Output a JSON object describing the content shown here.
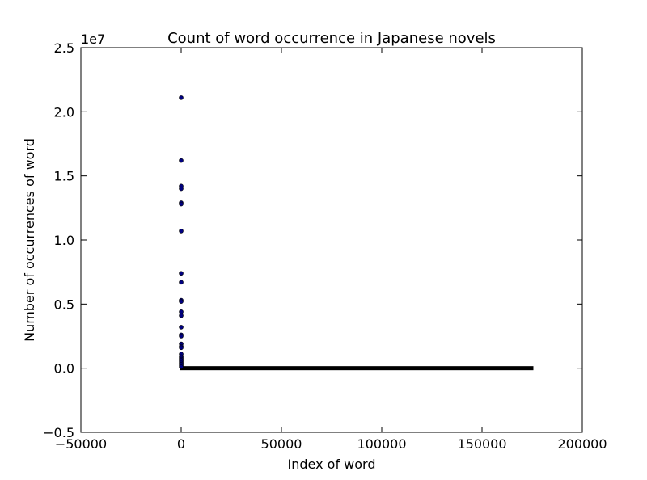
{
  "chart_data": {
    "type": "scatter",
    "title": "Count of word occurrence in Japanese novels",
    "xlabel": "Index of word",
    "ylabel": "Number of occurrences of word",
    "y_offset_label": "1e7",
    "xlim": [
      -50000,
      200000
    ],
    "ylim": [
      -0.5,
      2.5
    ],
    "y_scale_factor": 10000000,
    "x_ticks": [
      -50000,
      0,
      50000,
      100000,
      150000,
      200000
    ],
    "x_tick_labels": [
      "−50000",
      "0",
      "50000",
      "100000",
      "150000",
      "200000"
    ],
    "y_ticks": [
      -0.5,
      0.0,
      0.5,
      1.0,
      1.5,
      2.0,
      2.5
    ],
    "y_tick_labels": [
      "−0.5",
      "0.0",
      "0.5",
      "1.0",
      "1.5",
      "2.0",
      "2.5"
    ],
    "grid": false,
    "marker_color": "#000080",
    "points": [
      {
        "x": 0,
        "y": 2.11
      },
      {
        "x": 1,
        "y": 1.62
      },
      {
        "x": 2,
        "y": 1.42
      },
      {
        "x": 3,
        "y": 1.4
      },
      {
        "x": 4,
        "y": 1.29
      },
      {
        "x": 5,
        "y": 1.28
      },
      {
        "x": 6,
        "y": 1.07
      },
      {
        "x": 7,
        "y": 0.74
      },
      {
        "x": 8,
        "y": 0.67
      },
      {
        "x": 9,
        "y": 0.53
      },
      {
        "x": 10,
        "y": 0.52
      },
      {
        "x": 11,
        "y": 0.44
      },
      {
        "x": 12,
        "y": 0.41
      },
      {
        "x": 13,
        "y": 0.32
      },
      {
        "x": 14,
        "y": 0.26
      },
      {
        "x": 15,
        "y": 0.25
      },
      {
        "x": 16,
        "y": 0.19
      },
      {
        "x": 17,
        "y": 0.17
      },
      {
        "x": 18,
        "y": 0.16
      },
      {
        "x": 19,
        "y": 0.11
      },
      {
        "x": 20,
        "y": 0.09
      },
      {
        "x": 21,
        "y": 0.08
      },
      {
        "x": 22,
        "y": 0.07
      },
      {
        "x": 23,
        "y": 0.06
      },
      {
        "x": 24,
        "y": 0.05
      },
      {
        "x": 25,
        "y": 0.04
      },
      {
        "x": 26,
        "y": 0.03
      },
      {
        "x": 27,
        "y": 0.02
      },
      {
        "x": 28,
        "y": 0.01
      }
    ],
    "tail_series": {
      "x_range": [
        0,
        175000
      ],
      "y": 0.0
    }
  }
}
